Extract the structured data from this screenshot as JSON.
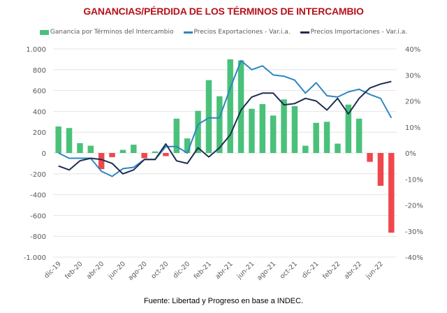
{
  "chart_data": {
    "type": "bar+line",
    "title": "GANANCIAS/PÉRDIDA DE LOS TÉRMINOS DE INTERCAMBIO",
    "source": "Fuente: Libertad y Progreso en base a INDEC.",
    "categories": [
      "dic-19",
      "ene-20",
      "feb-20",
      "mar-20",
      "abr-20",
      "may-20",
      "jun-20",
      "jul-20",
      "ago-20",
      "sep-20",
      "oct-20",
      "nov-20",
      "dic-20",
      "ene-21",
      "feb-21",
      "mar-21",
      "abr-21",
      "may-21",
      "jun-21",
      "jul-21",
      "ago-21",
      "sep-21",
      "oct-21",
      "nov-21",
      "dic-21",
      "ene-22",
      "feb-22",
      "mar-22",
      "abr-22",
      "may-22",
      "jun-22",
      "jul-22"
    ],
    "x_tick_labels": [
      "dic-19",
      "feb-20",
      "abr-20",
      "jun-20",
      "ago-20",
      "oct-20",
      "dic-20",
      "feb-21",
      "abr-21",
      "jun-21",
      "ago-21",
      "oct-21",
      "dic-21",
      "feb-22",
      "abr-22",
      "jun-22"
    ],
    "left_axis": {
      "ylim": [
        -1000,
        1000
      ],
      "ticks": [
        1000,
        800,
        600,
        400,
        200,
        0,
        -200,
        -400,
        -600,
        -800,
        -1000
      ],
      "tick_labels": [
        "1.000",
        "800",
        "600",
        "400",
        "200",
        "0",
        "-200",
        "-400",
        "-600",
        "-800",
        "-1.000"
      ]
    },
    "right_axis": {
      "ylim": [
        -40,
        40
      ],
      "ticks": [
        40,
        30,
        20,
        10,
        0,
        -10,
        -20,
        -30,
        -40
      ],
      "tick_labels": [
        "40%",
        "30%",
        "20%",
        "10%",
        "0%",
        "-10%",
        "-20%",
        "-30%",
        "-40%"
      ]
    },
    "grid": true,
    "legend_position": "top",
    "series": [
      {
        "name": "Ganancia por Términos del Intercambio",
        "type": "bar",
        "axis": "left",
        "color_positive": "#4ac17a",
        "color_negative": "#f0474d",
        "values": [
          255,
          240,
          95,
          70,
          -155,
          -40,
          30,
          80,
          -50,
          15,
          -30,
          330,
          140,
          405,
          700,
          545,
          900,
          890,
          425,
          470,
          360,
          515,
          450,
          70,
          290,
          300,
          90,
          465,
          330,
          -85,
          -315,
          -765
        ]
      },
      {
        "name": "Precios Exportaciones - Var.i.a.",
        "type": "line",
        "axis": "right",
        "color": "#2e86c1",
        "values": [
          0,
          -2,
          -2,
          -2,
          -7,
          -9,
          -6,
          -5.5,
          -2.5,
          -2.5,
          2.5,
          2.5,
          0,
          11,
          13.5,
          13.5,
          25,
          35.5,
          32,
          33.5,
          30,
          29.5,
          28,
          23,
          27,
          22,
          21.5,
          23.5,
          24.5,
          22.5,
          21,
          13.5
        ]
      },
      {
        "name": "Precios Importaciones - Var.i.a.",
        "type": "line",
        "axis": "right",
        "color": "#1f2d4f",
        "values": [
          -5,
          -6.5,
          -3,
          -2,
          -2.5,
          -4,
          -8,
          -6.5,
          -2.5,
          -2.5,
          3.5,
          -3,
          -4,
          2,
          -1.5,
          2,
          7,
          16.5,
          21.5,
          23,
          23,
          18.5,
          19,
          21,
          20,
          16.5,
          21,
          15,
          21,
          25,
          26.5,
          27.5
        ]
      }
    ]
  }
}
